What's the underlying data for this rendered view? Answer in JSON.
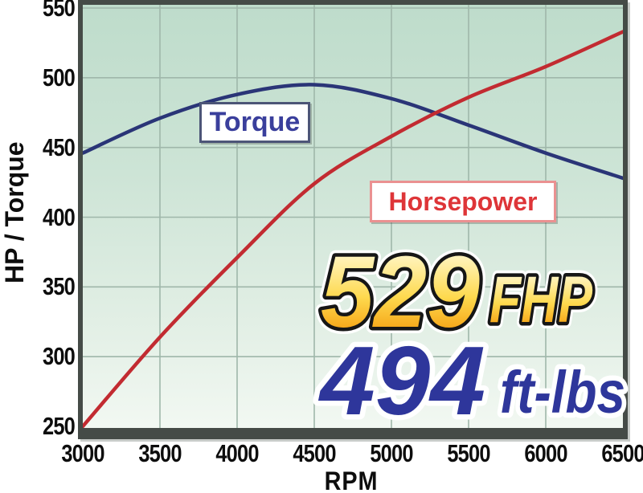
{
  "chart_data": {
    "type": "line",
    "title": "",
    "xlabel": "RPM",
    "ylabel": "HP / Torque",
    "x": [
      3000,
      3500,
      4000,
      4500,
      5000,
      5500,
      6000,
      6500
    ],
    "xlim": [
      3000,
      6500
    ],
    "ylim": [
      250,
      550
    ],
    "xticks": [
      "3000",
      "3500",
      "4000",
      "4500",
      "5000",
      "5500",
      "6000",
      "6500"
    ],
    "yticks": [
      "250",
      "300",
      "350",
      "400",
      "450",
      "500",
      "550"
    ],
    "grid": true,
    "legend_position": "inline-label-boxes",
    "series": [
      {
        "name": "Torque",
        "color": "#2a3577",
        "values": [
          446,
          471,
          488,
          495,
          485,
          466,
          446,
          428
        ]
      },
      {
        "name": "Horsepower",
        "color": "#c22b31",
        "values": [
          250,
          314,
          371,
          424,
          458,
          486,
          508,
          533
        ]
      }
    ]
  },
  "callouts": {
    "hp_value": "529",
    "hp_unit": "FHP",
    "torque_value": "494",
    "torque_unit": "ft-lbs"
  },
  "colors": {
    "plot_bg_top": "#bedccb",
    "plot_bg_bottom": "#f2f8f2",
    "gridline": "#9fb7aa",
    "frame": "#454b47",
    "torque_line": "#2a3577",
    "horsepower_line": "#c22b31",
    "torque_label_text": "#3a3f9c",
    "torque_label_border": "#4c5577",
    "horsepower_label_text": "#de3538",
    "horsepower_label_border": "#ea9191",
    "hp_callout_gold_top": "#fdf7d0",
    "hp_callout_gold_bottom": "#f0920f",
    "torque_callout_blue": "#2e369b"
  }
}
